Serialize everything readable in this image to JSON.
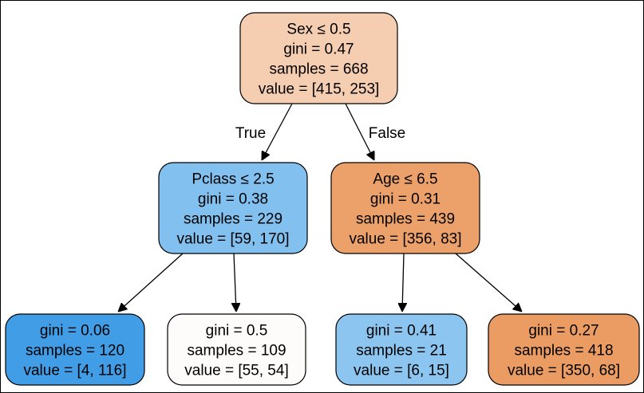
{
  "colors": {
    "root": "#f5cdb0",
    "left": "#82c0ef",
    "right": "#eca06a",
    "leaf_ll": "#419ee6",
    "leaf_lr": "#fefcfb",
    "leaf_rl": "#8cc6f0",
    "leaf_rr": "#eb9c63"
  },
  "nodes": {
    "root": {
      "lines": [
        "Sex ≤ 0.5",
        "gini = 0.47",
        "samples = 668",
        "value = [415, 253]"
      ]
    },
    "left": {
      "lines": [
        "Pclass ≤ 2.5",
        "gini = 0.38",
        "samples = 229",
        "value = [59, 170]"
      ]
    },
    "right": {
      "lines": [
        "Age ≤ 6.5",
        "gini = 0.31",
        "samples = 439",
        "value = [356, 83]"
      ]
    },
    "leaf_ll": {
      "lines": [
        "gini = 0.06",
        "samples = 120",
        "value = [4, 116]"
      ]
    },
    "leaf_lr": {
      "lines": [
        "gini = 0.5",
        "samples = 109",
        "value = [55, 54]"
      ]
    },
    "leaf_rl": {
      "lines": [
        "gini = 0.41",
        "samples = 21",
        "value = [6, 15]"
      ]
    },
    "leaf_rr": {
      "lines": [
        "gini = 0.27",
        "samples = 418",
        "value = [350, 68]"
      ]
    }
  },
  "edge_labels": {
    "true": "True",
    "false": "False"
  }
}
